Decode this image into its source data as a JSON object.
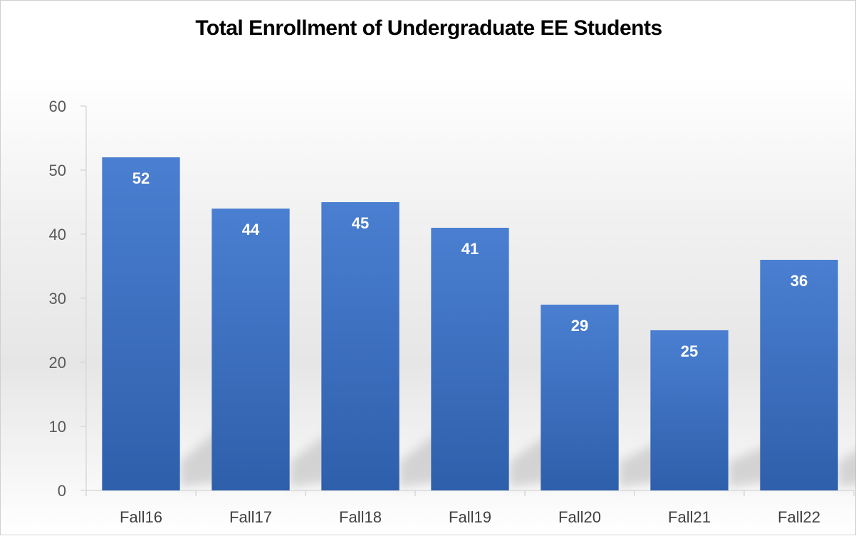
{
  "chart_data": {
    "type": "bar",
    "title": "Total Enrollment of Undergraduate EE Students",
    "xlabel": "",
    "ylabel": "",
    "categories": [
      "Fall16",
      "Fall17",
      "Fall18",
      "Fall19",
      "Fall20",
      "Fall21",
      "Fall22"
    ],
    "values": [
      52,
      44,
      45,
      41,
      29,
      25,
      36
    ],
    "data_labels": [
      "52",
      "44",
      "45",
      "41",
      "29",
      "25",
      "36"
    ],
    "ylim": [
      0,
      60
    ],
    "yticks": [
      0,
      10,
      20,
      30,
      40,
      50,
      60
    ],
    "ytick_labels": [
      "0",
      "10",
      "20",
      "30",
      "40",
      "50",
      "60"
    ],
    "grid": false,
    "legend": "none",
    "colors": {
      "bar_top": "#4a7fd1",
      "bar_bottom": "#2e5fab",
      "axis": "#d9d9d9",
      "title": "#000000"
    }
  }
}
